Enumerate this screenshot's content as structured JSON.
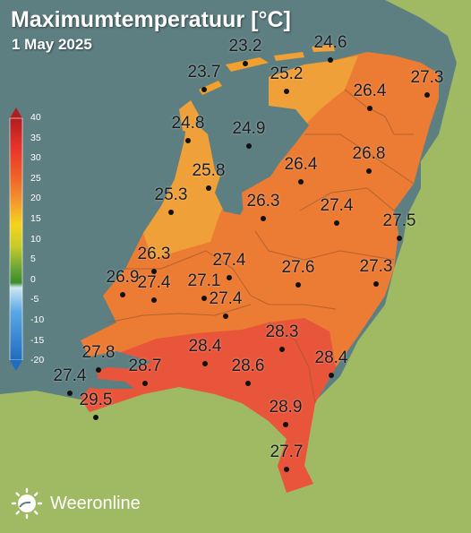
{
  "header": {
    "title": "Maximumtemperatuur [°C]",
    "date": "1 May 2025"
  },
  "legend": {
    "ticks": [
      "40",
      "35",
      "30",
      "25",
      "20",
      "15",
      "10",
      "5",
      "0",
      "-5",
      "-10",
      "-15",
      "-20"
    ],
    "colors": [
      "#e8332b",
      "#f0652a",
      "#f3a12c",
      "#f5d31c",
      "#c5cc2b",
      "#6ba637",
      "#cfe5f2",
      "#5aa8e4",
      "#1f6cc1"
    ]
  },
  "map": {
    "colors": {
      "sea": "#5e7f82",
      "land_abroad": "#9fba63",
      "temp_24_26": "#f0a038",
      "temp_26_28": "#ec7b33",
      "temp_28_30": "#e8553a",
      "borders": "#9a5a30"
    },
    "stations": [
      {
        "id": "terschelling",
        "value": "23.2"
      },
      {
        "id": "schiermonnikoog",
        "value": "24.6"
      },
      {
        "id": "vlieland",
        "value": "23.7"
      },
      {
        "id": "leeuwarden",
        "value": "25.2"
      },
      {
        "id": "groningen",
        "value": "27.3"
      },
      {
        "id": "assen",
        "value": "26.4"
      },
      {
        "id": "de-kooy",
        "value": "24.8"
      },
      {
        "id": "stavoren",
        "value": "24.9"
      },
      {
        "id": "berkhout",
        "value": "25.8"
      },
      {
        "id": "heino",
        "value": "26.4"
      },
      {
        "id": "hoogeveen",
        "value": "26.8"
      },
      {
        "id": "ijmuiden",
        "value": "25.3"
      },
      {
        "id": "lelystad",
        "value": "26.3"
      },
      {
        "id": "deelen",
        "value": "27.4"
      },
      {
        "id": "twenthe",
        "value": "27.5"
      },
      {
        "id": "schiphol",
        "value": "26.3"
      },
      {
        "id": "de-bilt",
        "value": "27.4"
      },
      {
        "id": "hoek-van-holland",
        "value": "26.9"
      },
      {
        "id": "rotterdam",
        "value": "27.4"
      },
      {
        "id": "cabauw",
        "value": "27.1"
      },
      {
        "id": "herwijnen",
        "value": "27.4"
      },
      {
        "id": "arnhem",
        "value": "27.6"
      },
      {
        "id": "hupsel",
        "value": "27.3"
      },
      {
        "id": "volkel",
        "value": "28.3"
      },
      {
        "id": "wilhelminadorp",
        "value": "27.8"
      },
      {
        "id": "vlissingen",
        "value": "27.4"
      },
      {
        "id": "woensdrecht",
        "value": "28.7"
      },
      {
        "id": "gilze-rijen",
        "value": "28.4"
      },
      {
        "id": "eindhoven",
        "value": "28.6"
      },
      {
        "id": "arcen",
        "value": "28.4"
      },
      {
        "id": "westdorpe",
        "value": "29.5"
      },
      {
        "id": "ell",
        "value": "28.9"
      },
      {
        "id": "maastricht",
        "value": "27.7"
      }
    ]
  },
  "brand": {
    "name": "Weeronline",
    "icon": "sun-logo-icon"
  }
}
